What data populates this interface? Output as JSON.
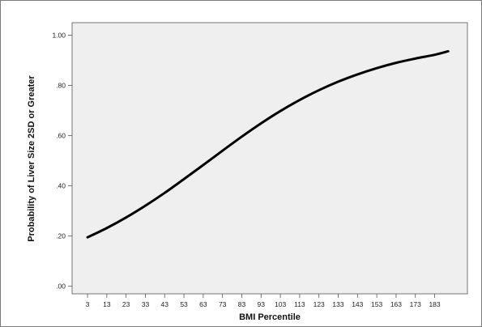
{
  "chart_data": {
    "type": "line",
    "title": "",
    "xlabel": "BMI Percentile",
    "ylabel": "Probability of Liver Size 2SD or Greater",
    "x_ticks": [
      3,
      13,
      23,
      33,
      43,
      53,
      63,
      73,
      83,
      93,
      103,
      113,
      123,
      133,
      143,
      153,
      163,
      173,
      183
    ],
    "x_tick_labels": [
      "3",
      "13",
      "23",
      "33",
      "43",
      "53",
      "63",
      "73",
      "83",
      "93",
      "103",
      "113",
      "123",
      "133",
      "143",
      "153",
      "163",
      "173",
      "183"
    ],
    "y_ticks": [
      0.0,
      0.2,
      0.4,
      0.6,
      0.8,
      1.0
    ],
    "y_tick_labels": [
      ".00",
      ".20",
      ".40",
      ".60",
      ".80",
      "1.00"
    ],
    "xlim": [
      -5,
      200
    ],
    "ylim": [
      -0.03,
      1.05
    ],
    "grid": false,
    "colors": {
      "plot_background": "#efefef",
      "line": "#000000",
      "axis": "#555555"
    },
    "series": [
      {
        "x": [
          3,
          13,
          23,
          33,
          43,
          53,
          63,
          73,
          83,
          93,
          103,
          113,
          123,
          133,
          143,
          153,
          163,
          173,
          183,
          190
        ],
        "y": [
          0.195,
          0.232,
          0.274,
          0.321,
          0.372,
          0.427,
          0.483,
          0.54,
          0.596,
          0.649,
          0.698,
          0.742,
          0.781,
          0.815,
          0.844,
          0.869,
          0.89,
          0.907,
          0.922,
          0.936
        ]
      }
    ]
  }
}
